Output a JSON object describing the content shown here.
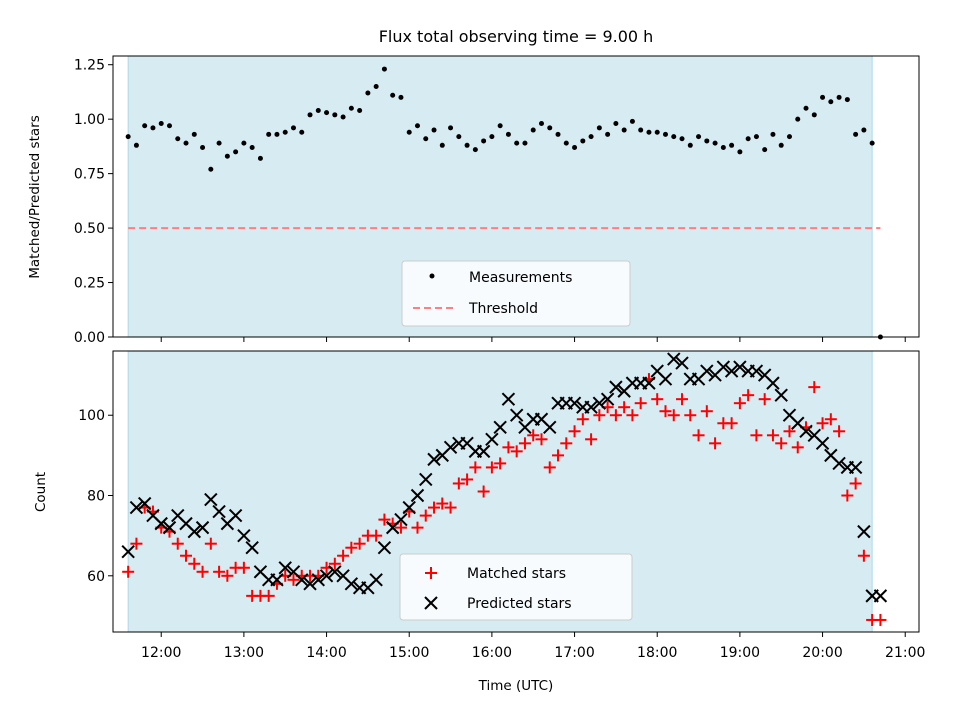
{
  "chart_data": [
    {
      "type": "scatter",
      "title": "Flux total observing time = 9.00 h",
      "xlabel": "",
      "ylabel": "Matched/Predicted stars",
      "xlim": [
        "11:25",
        "21:10"
      ],
      "ylim": [
        0,
        1.29
      ],
      "yticks": [
        0,
        0.25,
        0.5,
        0.75,
        1.0,
        1.25
      ],
      "ytick_labels": [
        "0.00",
        "0.25",
        "0.50",
        "0.75",
        "1.00",
        "1.25"
      ],
      "shaded_span": [
        "11:36",
        "20:36"
      ],
      "shade_color": "#add8e6",
      "legend_position": "bottom-center",
      "series": [
        {
          "name": "Measurements",
          "marker": "dot",
          "color": "#000000",
          "x": [
            "11:36",
            "11:42",
            "11:48",
            "11:54",
            "12:00",
            "12:06",
            "12:12",
            "12:18",
            "12:24",
            "12:30",
            "12:36",
            "12:42",
            "12:48",
            "12:54",
            "13:00",
            "13:06",
            "13:12",
            "13:18",
            "13:24",
            "13:30",
            "13:36",
            "13:42",
            "13:48",
            "13:54",
            "14:00",
            "14:06",
            "14:12",
            "14:18",
            "14:24",
            "14:30",
            "14:36",
            "14:42",
            "14:48",
            "14:54",
            "15:00",
            "15:06",
            "15:12",
            "15:18",
            "15:24",
            "15:30",
            "15:36",
            "15:42",
            "15:48",
            "15:54",
            "16:00",
            "16:06",
            "16:12",
            "16:18",
            "16:24",
            "16:30",
            "16:36",
            "16:42",
            "16:48",
            "16:54",
            "17:00",
            "17:06",
            "17:12",
            "17:18",
            "17:24",
            "17:30",
            "17:36",
            "17:42",
            "17:48",
            "17:54",
            "18:00",
            "18:06",
            "18:12",
            "18:18",
            "18:24",
            "18:30",
            "18:36",
            "18:42",
            "18:48",
            "18:54",
            "19:00",
            "19:06",
            "19:12",
            "19:18",
            "19:24",
            "19:30",
            "19:36",
            "19:42",
            "19:48",
            "19:54",
            "20:00",
            "20:06",
            "20:12",
            "20:18",
            "20:24",
            "20:30",
            "20:36",
            "20:42"
          ],
          "y": [
            0.92,
            0.88,
            0.97,
            0.96,
            0.98,
            0.97,
            0.91,
            0.89,
            0.93,
            0.87,
            0.77,
            0.89,
            0.83,
            0.85,
            0.89,
            0.87,
            0.82,
            0.93,
            0.93,
            0.94,
            0.96,
            0.94,
            1.02,
            1.04,
            1.03,
            1.02,
            1.01,
            1.05,
            1.04,
            1.12,
            1.15,
            1.23,
            1.11,
            1.1,
            0.94,
            0.97,
            0.91,
            0.95,
            0.88,
            0.96,
            0.92,
            0.88,
            0.86,
            0.9,
            0.92,
            0.97,
            0.93,
            0.89,
            0.89,
            0.95,
            0.98,
            0.96,
            0.93,
            0.89,
            0.87,
            0.9,
            0.92,
            0.96,
            0.93,
            0.98,
            0.95,
            0.99,
            0.95,
            0.94,
            0.94,
            0.93,
            0.92,
            0.91,
            0.88,
            0.92,
            0.9,
            0.89,
            0.87,
            0.88,
            0.85,
            0.91,
            0.92,
            0.86,
            0.93,
            0.88,
            0.92,
            1.0,
            1.05,
            1.02,
            1.1,
            1.08,
            1.1,
            1.09,
            0.93,
            0.95,
            0.89,
            0.0
          ]
        },
        {
          "name": "Threshold",
          "marker": "dashed-line",
          "color": "#ff7f7f",
          "x": [
            "11:36",
            "20:42"
          ],
          "y": [
            0.5,
            0.5
          ]
        }
      ]
    },
    {
      "type": "scatter",
      "title": "",
      "xlabel": "Time (UTC)",
      "ylabel": "Count",
      "xlim": [
        "11:25",
        "21:10"
      ],
      "ylim": [
        46,
        116
      ],
      "yticks": [
        60,
        80,
        100
      ],
      "ytick_labels": [
        "60",
        "80",
        "100"
      ],
      "xticks": [
        "12:00",
        "13:00",
        "14:00",
        "15:00",
        "16:00",
        "17:00",
        "18:00",
        "19:00",
        "20:00",
        "21:00"
      ],
      "shaded_span": [
        "11:36",
        "20:36"
      ],
      "shade_color": "#add8e6",
      "legend_position": "bottom-center",
      "series": [
        {
          "name": "Matched stars",
          "marker": "plus",
          "color": "#ff0000",
          "x": [
            "11:36",
            "11:42",
            "11:48",
            "11:54",
            "12:00",
            "12:06",
            "12:12",
            "12:18",
            "12:24",
            "12:30",
            "12:36",
            "12:42",
            "12:48",
            "12:54",
            "13:00",
            "13:06",
            "13:12",
            "13:18",
            "13:24",
            "13:30",
            "13:36",
            "13:42",
            "13:48",
            "13:54",
            "14:00",
            "14:06",
            "14:12",
            "14:18",
            "14:24",
            "14:30",
            "14:36",
            "14:42",
            "14:48",
            "14:54",
            "15:00",
            "15:06",
            "15:12",
            "15:18",
            "15:24",
            "15:30",
            "15:36",
            "15:42",
            "15:48",
            "15:54",
            "16:00",
            "16:06",
            "16:12",
            "16:18",
            "16:24",
            "16:30",
            "16:36",
            "16:42",
            "16:48",
            "16:54",
            "17:00",
            "17:06",
            "17:12",
            "17:18",
            "17:24",
            "17:30",
            "17:36",
            "17:42",
            "17:48",
            "17:54",
            "18:00",
            "18:06",
            "18:12",
            "18:18",
            "18:24",
            "18:30",
            "18:36",
            "18:42",
            "18:48",
            "18:54",
            "19:00",
            "19:06",
            "19:12",
            "19:18",
            "19:24",
            "19:30",
            "19:36",
            "19:42",
            "19:48",
            "19:54",
            "20:00",
            "20:06",
            "20:12",
            "20:18",
            "20:24",
            "20:30",
            "20:36",
            "20:42"
          ],
          "y": [
            61,
            68,
            77,
            76,
            72,
            71,
            68,
            65,
            63,
            61,
            68,
            61,
            60,
            62,
            62,
            55,
            55,
            55,
            58,
            60,
            59,
            60,
            60,
            60,
            62,
            63,
            65,
            67,
            68,
            70,
            70,
            74,
            73,
            72,
            76,
            72,
            75,
            77,
            78,
            77,
            83,
            84,
            87,
            81,
            87,
            88,
            92,
            91,
            93,
            95,
            94,
            87,
            90,
            93,
            96,
            99,
            94,
            100,
            102,
            100,
            102,
            100,
            103,
            109,
            104,
            101,
            100,
            104,
            100,
            95,
            101,
            93,
            98,
            98,
            103,
            105,
            95,
            104,
            95,
            93,
            96,
            92,
            97,
            107,
            98,
            99,
            96,
            80,
            83,
            65,
            49,
            49
          ]
        },
        {
          "name": "Predicted stars",
          "marker": "cross",
          "color": "#000000",
          "x": [
            "11:36",
            "11:42",
            "11:48",
            "11:54",
            "12:00",
            "12:06",
            "12:12",
            "12:18",
            "12:24",
            "12:30",
            "12:36",
            "12:42",
            "12:48",
            "12:54",
            "13:00",
            "13:06",
            "13:12",
            "13:18",
            "13:24",
            "13:30",
            "13:36",
            "13:42",
            "13:48",
            "13:54",
            "14:00",
            "14:06",
            "14:12",
            "14:18",
            "14:24",
            "14:30",
            "14:36",
            "14:42",
            "14:48",
            "14:54",
            "15:00",
            "15:06",
            "15:12",
            "15:18",
            "15:24",
            "15:30",
            "15:36",
            "15:42",
            "15:48",
            "15:54",
            "16:00",
            "16:06",
            "16:12",
            "16:18",
            "16:24",
            "16:30",
            "16:36",
            "16:42",
            "16:48",
            "16:54",
            "17:00",
            "17:06",
            "17:12",
            "17:18",
            "17:24",
            "17:30",
            "17:36",
            "17:42",
            "17:48",
            "17:54",
            "18:00",
            "18:06",
            "18:12",
            "18:18",
            "18:24",
            "18:30",
            "18:36",
            "18:42",
            "18:48",
            "18:54",
            "19:00",
            "19:06",
            "19:12",
            "19:18",
            "19:24",
            "19:30",
            "19:36",
            "19:42",
            "19:48",
            "19:54",
            "20:00",
            "20:06",
            "20:12",
            "20:18",
            "20:24",
            "20:30",
            "20:36",
            "20:42"
          ],
          "y": [
            66,
            77,
            78,
            75,
            73,
            72,
            75,
            73,
            71,
            72,
            79,
            76,
            73,
            75,
            70,
            67,
            61,
            59,
            59,
            62,
            61,
            59,
            58,
            59,
            60,
            61,
            60,
            58,
            57,
            57,
            59,
            67,
            72,
            74,
            77,
            80,
            84,
            89,
            90,
            92,
            93,
            93,
            91,
            91,
            94,
            97,
            104,
            100,
            97,
            99,
            99,
            97,
            103,
            103,
            103,
            102,
            102,
            103,
            104,
            107,
            106,
            108,
            108,
            108,
            111,
            109,
            114,
            113,
            109,
            109,
            111,
            110,
            112,
            111,
            112,
            111,
            111,
            110,
            108,
            105,
            100,
            98,
            96,
            95,
            93,
            90,
            88,
            87,
            87,
            71,
            55,
            55
          ]
        }
      ]
    }
  ]
}
